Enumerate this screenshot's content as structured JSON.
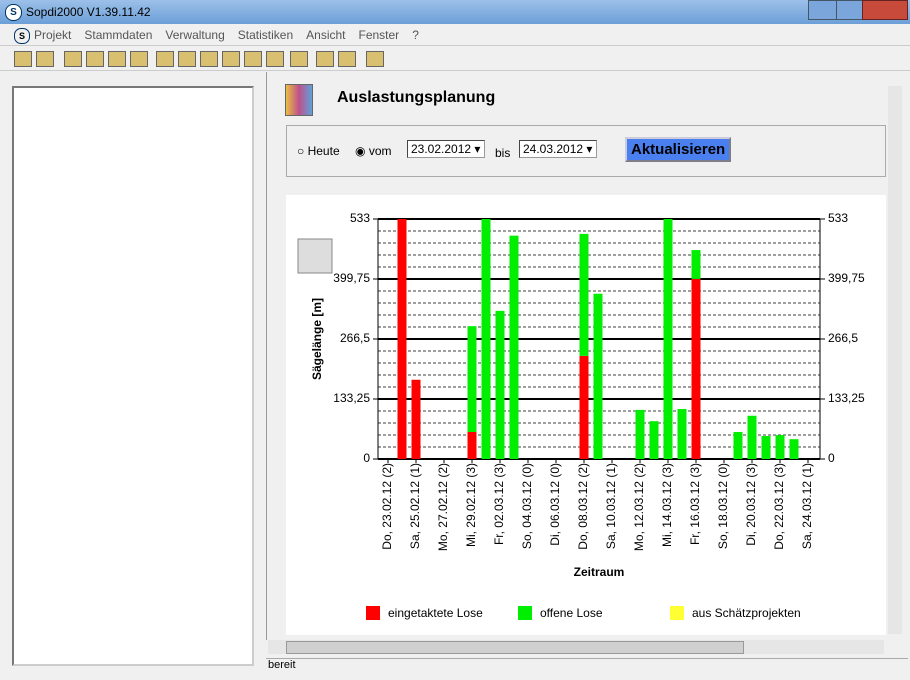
{
  "window": {
    "title": "Sopdi2000 V1.39.11.42"
  },
  "menu": [
    "Projekt",
    "Stammdaten",
    "Verwaltung",
    "Statistiken",
    "Ansicht",
    "Fenster",
    "?"
  ],
  "header": {
    "title": "Auslastungsplanung"
  },
  "filter": {
    "today": "Heute",
    "from": "vom",
    "from_date": "23.02.2012",
    "to": "bis",
    "to_date": "24.03.2012",
    "button": "Aktualisieren"
  },
  "status": "bereit",
  "chart_data": {
    "type": "stacked-bar",
    "y_label": "Sägelänge [m]",
    "x_label": "Zeitraum",
    "categories": [
      "Do, 23.02.12 (2)",
      null,
      "Sa, 25.02.12 (1)",
      null,
      "Mo, 27.02.12 (2)",
      null,
      "Mi, 29.02.12 (3)",
      null,
      "Fr, 02.03.12 (3)",
      null,
      "So, 04.03.12 (0)",
      null,
      "Di, 06.03.12 (0)",
      null,
      "Do, 08.03.12 (2)",
      null,
      "Sa, 10.03.12 (1)",
      null,
      "Mo, 12.03.12 (2)",
      null,
      "Mi, 14.03.12 (3)",
      null,
      "Fr, 16.03.12 (3)",
      null,
      "So, 18.03.12 (0)",
      null,
      "Di, 20.03.12 (3)",
      null,
      "Do, 22.03.12 (3)",
      null,
      "Sa, 24.03.12 (1)"
    ],
    "series": [
      {
        "name": "eingetaktete Lose",
        "color": "#ff0000",
        "values": [
          0,
          533,
          176,
          0,
          0,
          0,
          60,
          0,
          0,
          0,
          0,
          0,
          0,
          0,
          229,
          0,
          0,
          0,
          0,
          0,
          0,
          0,
          400,
          0,
          0,
          0,
          0,
          0,
          0,
          0,
          0
        ]
      },
      {
        "name": "offene Lose",
        "color": "#00ee00",
        "values": [
          0,
          0,
          0,
          0,
          0,
          0,
          235,
          533,
          329,
          496,
          0,
          0,
          0,
          0,
          271,
          367,
          0,
          0,
          109,
          84,
          533,
          111,
          64,
          0,
          0,
          60,
          96,
          51,
          53,
          44,
          0
        ]
      },
      {
        "name": "aus Schätzprojekten",
        "color": "#ffff33",
        "values": [
          0,
          0,
          0,
          0,
          0,
          0,
          0,
          0,
          0,
          0,
          0,
          0,
          0,
          0,
          0,
          0,
          0,
          0,
          0,
          0,
          0,
          0,
          0,
          0,
          0,
          0,
          0,
          0,
          0,
          0,
          0
        ]
      }
    ],
    "ylim": [
      0,
      533
    ],
    "yticks": [
      0,
      {
        "value": 133.25,
        "label": "133,25"
      },
      {
        "value": 266.5,
        "label": "266,5"
      },
      {
        "value": 399.75,
        "label": "399,75"
      },
      533
    ],
    "grid": true
  }
}
